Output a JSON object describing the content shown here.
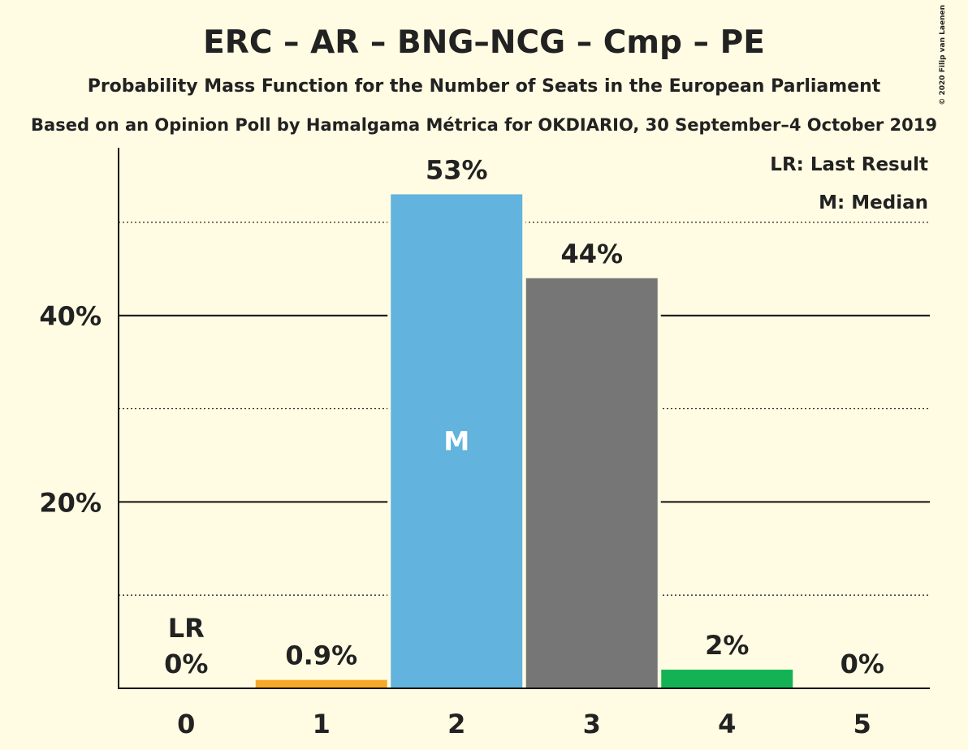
{
  "chart_data": {
    "type": "bar",
    "title": "ERC – AR – BNG–NCG – Cmp – PE",
    "subtitle": "Probability Mass Function for the Number of Seats in the European Parliament",
    "source": "Based on an Opinion Poll by Hamalgama Métrica for OKDIARIO, 30 September–4 October 2019",
    "copyright": "© 2020 Filip van Laenen",
    "categories": [
      "0",
      "1",
      "2",
      "3",
      "4",
      "5"
    ],
    "values": [
      0,
      0.9,
      53,
      44,
      2,
      0
    ],
    "value_labels": [
      "0%",
      "0.9%",
      "53%",
      "44%",
      "2%",
      "0%"
    ],
    "bar_colors": [
      "#F7A829",
      "#F7A829",
      "#62B3DD",
      "#767676",
      "#13B355",
      "#13B355"
    ],
    "ylim": [
      0,
      58
    ],
    "y_major_ticks": [
      20,
      40
    ],
    "y_tick_labels": [
      "20%",
      "40%"
    ],
    "y_minor_ticks": [
      10,
      30,
      50
    ],
    "last_result_index": 0,
    "last_result_marker": "LR",
    "median_index": 2,
    "median_marker": "M",
    "legend": [
      "LR: Last Result",
      "M: Median"
    ],
    "legend_position": "top-right"
  }
}
